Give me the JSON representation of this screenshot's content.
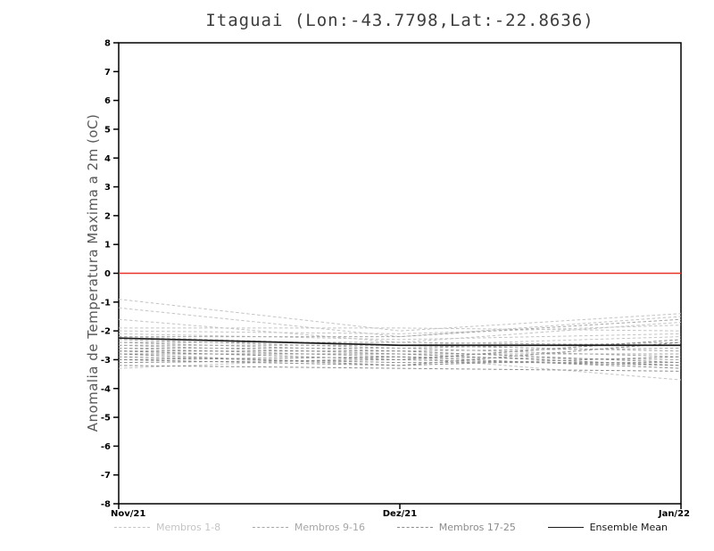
{
  "title": "Itaguai (Lon:-43.7798,Lat:-22.8636)",
  "chart_data": {
    "type": "line",
    "title": "Itaguai (Lon:-43.7798,Lat:-22.8636)",
    "ylabel": "Anomalia de Temperatura Maxima a 2m (oC)",
    "xlabel": "",
    "ylim": [
      -8,
      8
    ],
    "ytick_step": 1,
    "grid": false,
    "legend_position": "bottom",
    "categories": [
      "Nov/21",
      "Dez/21",
      "Jan/22"
    ],
    "zero_line": {
      "y": 0,
      "color": "#e8352a"
    },
    "groups": [
      {
        "name": "Membros 1-8",
        "color": "#c4c4c4",
        "dashed": true,
        "members": [
          [
            -0.9,
            -2.0,
            -1.4
          ],
          [
            -1.2,
            -2.2,
            -1.5
          ],
          [
            -1.6,
            -2.4,
            -1.7
          ],
          [
            -1.9,
            -1.9,
            -2.0
          ],
          [
            -2.0,
            -2.1,
            -1.8
          ],
          [
            -2.1,
            -2.3,
            -2.1
          ],
          [
            -2.2,
            -2.5,
            -2.2
          ],
          [
            -3.3,
            -2.9,
            -3.7
          ]
        ]
      },
      {
        "name": "Membros 9-16",
        "color": "#a6a6a6",
        "dashed": true,
        "members": [
          [
            -2.3,
            -2.6,
            -2.4
          ],
          [
            -2.4,
            -2.4,
            -2.5
          ],
          [
            -2.4,
            -2.7,
            -2.6
          ],
          [
            -2.5,
            -2.5,
            -2.7
          ],
          [
            -2.5,
            -2.8,
            -2.8
          ],
          [
            -2.6,
            -2.6,
            -2.9
          ],
          [
            -2.6,
            -2.9,
            -3.0
          ],
          [
            -2.2,
            -2.2,
            -1.6
          ]
        ]
      },
      {
        "name": "Membros 17-25",
        "color": "#8c8c8c",
        "dashed": true,
        "members": [
          [
            -2.7,
            -3.0,
            -2.3
          ],
          [
            -2.8,
            -2.8,
            -3.2
          ],
          [
            -2.9,
            -3.1,
            -3.1
          ],
          [
            -3.0,
            -2.9,
            -3.3
          ],
          [
            -3.0,
            -3.2,
            -2.9
          ],
          [
            -3.1,
            -3.0,
            -3.2
          ],
          [
            -3.2,
            -3.3,
            -3.4
          ],
          [
            -2.7,
            -2.7,
            -3.1
          ],
          [
            -2.8,
            -3.2,
            -2.4
          ]
        ]
      }
    ],
    "ensemble_mean": {
      "name": "Ensemble Mean",
      "color": "#1a1a1a",
      "values": [
        -2.25,
        -2.5,
        -2.5
      ]
    }
  },
  "legend": [
    {
      "label": "Membros 1-8",
      "style": "dashed",
      "color": "#c4c4c4"
    },
    {
      "label": "Membros 9-16",
      "style": "dashed",
      "color": "#a6a6a6"
    },
    {
      "label": "Membros 17-25",
      "style": "dashed",
      "color": "#8c8c8c"
    },
    {
      "label": "Ensemble Mean",
      "style": "solid",
      "color": "#1a1a1a"
    }
  ]
}
